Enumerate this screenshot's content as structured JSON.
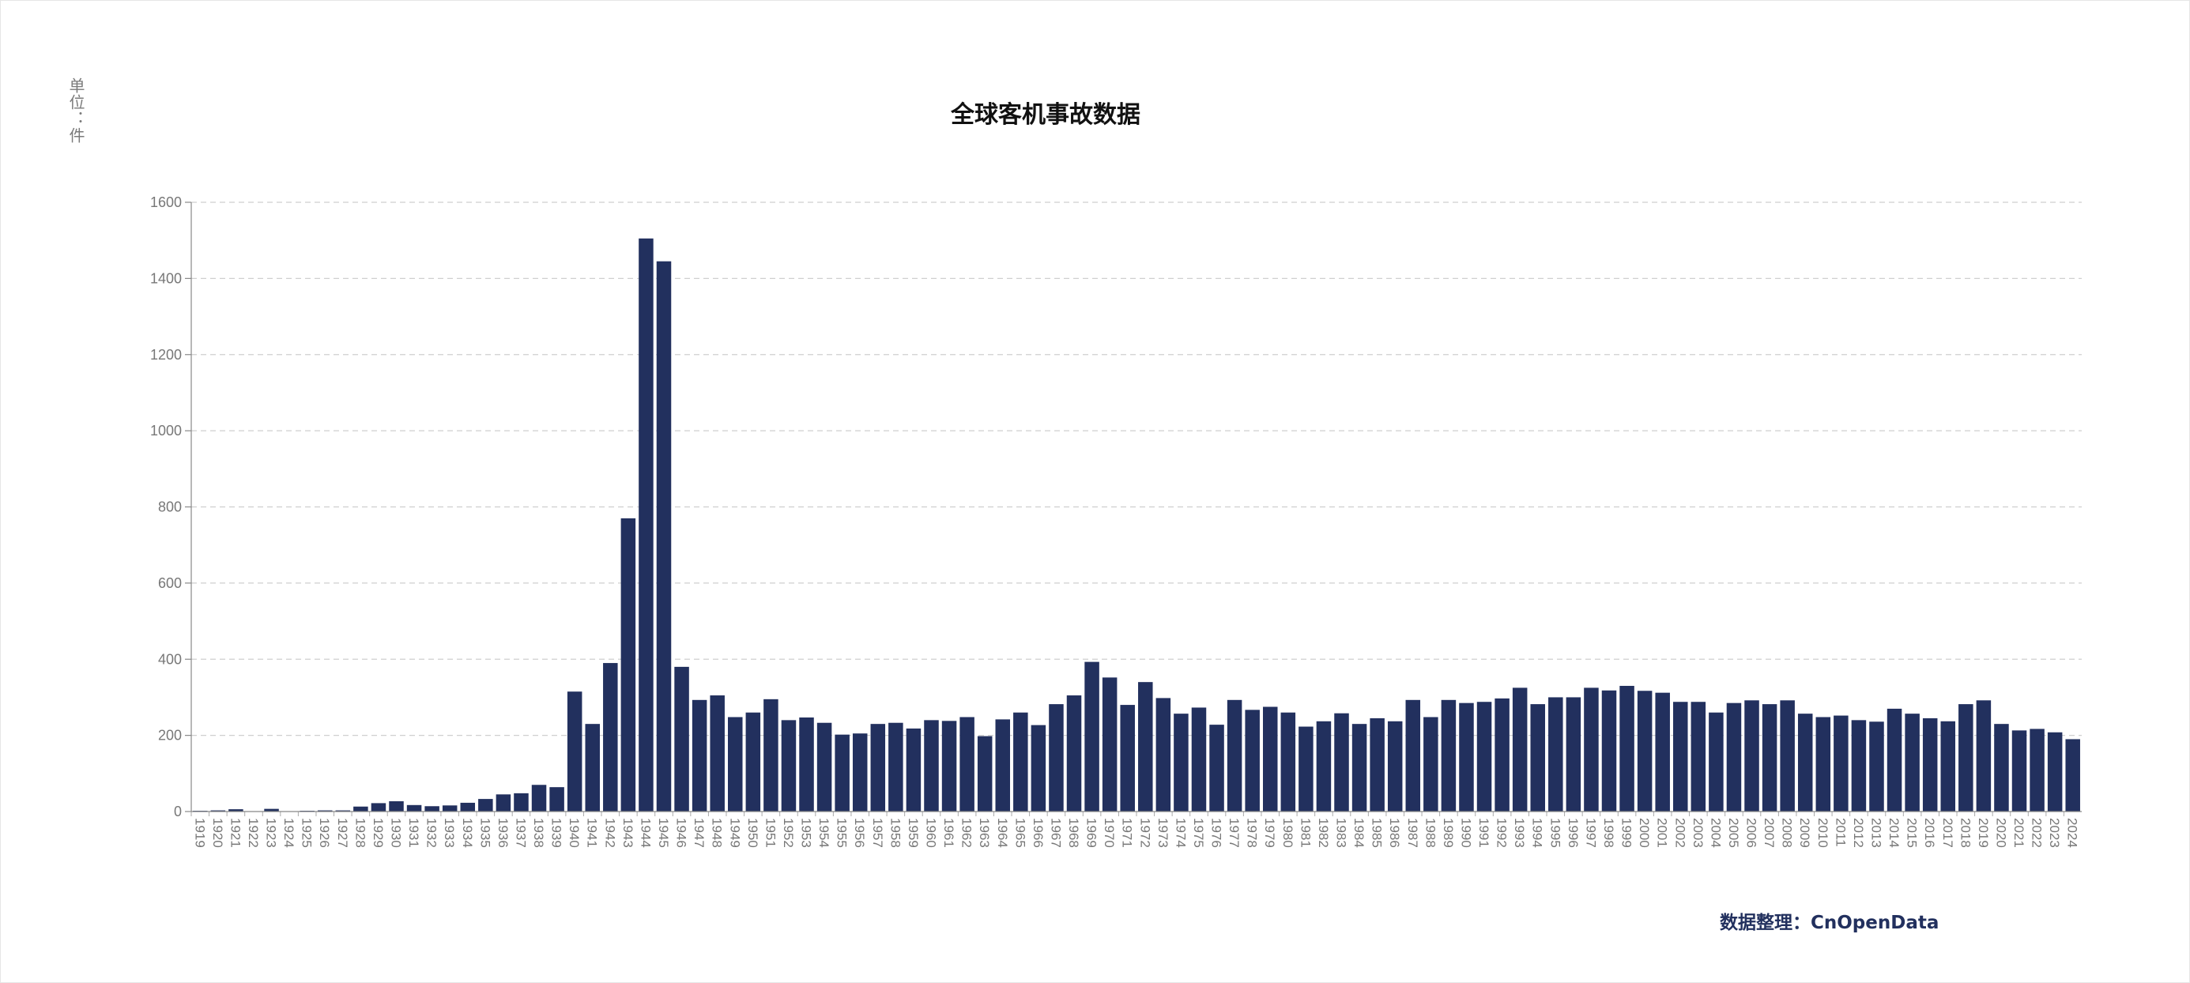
{
  "chart_data": {
    "type": "bar",
    "title": "全球客机事故数据",
    "ylabel": "单位：件",
    "source": "数据整理：CnOpenData",
    "ylim": [
      0,
      1600
    ],
    "yticks": [
      0,
      200,
      400,
      600,
      800,
      1000,
      1200,
      1400,
      1600
    ],
    "grid": true,
    "bar_color": "#22305e",
    "categories": [
      "1919",
      "1920",
      "1921",
      "1922",
      "1923",
      "1924",
      "1925",
      "1926",
      "1927",
      "1928",
      "1929",
      "1930",
      "1931",
      "1932",
      "1933",
      "1934",
      "1935",
      "1936",
      "1937",
      "1938",
      "1939",
      "1940",
      "1941",
      "1942",
      "1943",
      "1944",
      "1945",
      "1946",
      "1947",
      "1948",
      "1949",
      "1950",
      "1951",
      "1952",
      "1953",
      "1954",
      "1955",
      "1956",
      "1957",
      "1958",
      "1959",
      "1960",
      "1961",
      "1962",
      "1963",
      "1964",
      "1965",
      "1966",
      "1967",
      "1968",
      "1969",
      "1970",
      "1971",
      "1972",
      "1973",
      "1974",
      "1975",
      "1976",
      "1977",
      "1978",
      "1979",
      "1980",
      "1981",
      "1982",
      "1983",
      "1984",
      "1985",
      "1986",
      "1987",
      "1988",
      "1989",
      "1990",
      "1991",
      "1992",
      "1993",
      "1994",
      "1995",
      "1996",
      "1997",
      "1998",
      "1999",
      "2000",
      "2001",
      "2002",
      "2003",
      "2004",
      "2005",
      "2006",
      "2007",
      "2008",
      "2009",
      "2010",
      "2011",
      "2012",
      "2013",
      "2014",
      "2015",
      "2016",
      "2017",
      "2018",
      "2019",
      "2020",
      "2021",
      "2022",
      "2023",
      "2024"
    ],
    "values": [
      2,
      3,
      6,
      1,
      7,
      1,
      2,
      3,
      3,
      13,
      22,
      27,
      17,
      14,
      16,
      23,
      33,
      45,
      48,
      70,
      64,
      315,
      230,
      390,
      770,
      1505,
      1445,
      380,
      293,
      305,
      248,
      260,
      295,
      240,
      247,
      233,
      202,
      205,
      230,
      233,
      218,
      240,
      238,
      248,
      198,
      242,
      260,
      227,
      282,
      305,
      393,
      352,
      280,
      340,
      298,
      257,
      273,
      228,
      293,
      267,
      275,
      260,
      223,
      237,
      258,
      230,
      245,
      237,
      293,
      248,
      293,
      285,
      288,
      297,
      325,
      282,
      300,
      300,
      325,
      318,
      330,
      317,
      312,
      288,
      288,
      260,
      285,
      292,
      282,
      292,
      257,
      248,
      252,
      240,
      236,
      270,
      257,
      245,
      237,
      282,
      292,
      230,
      213,
      217,
      208,
      190
    ]
  }
}
